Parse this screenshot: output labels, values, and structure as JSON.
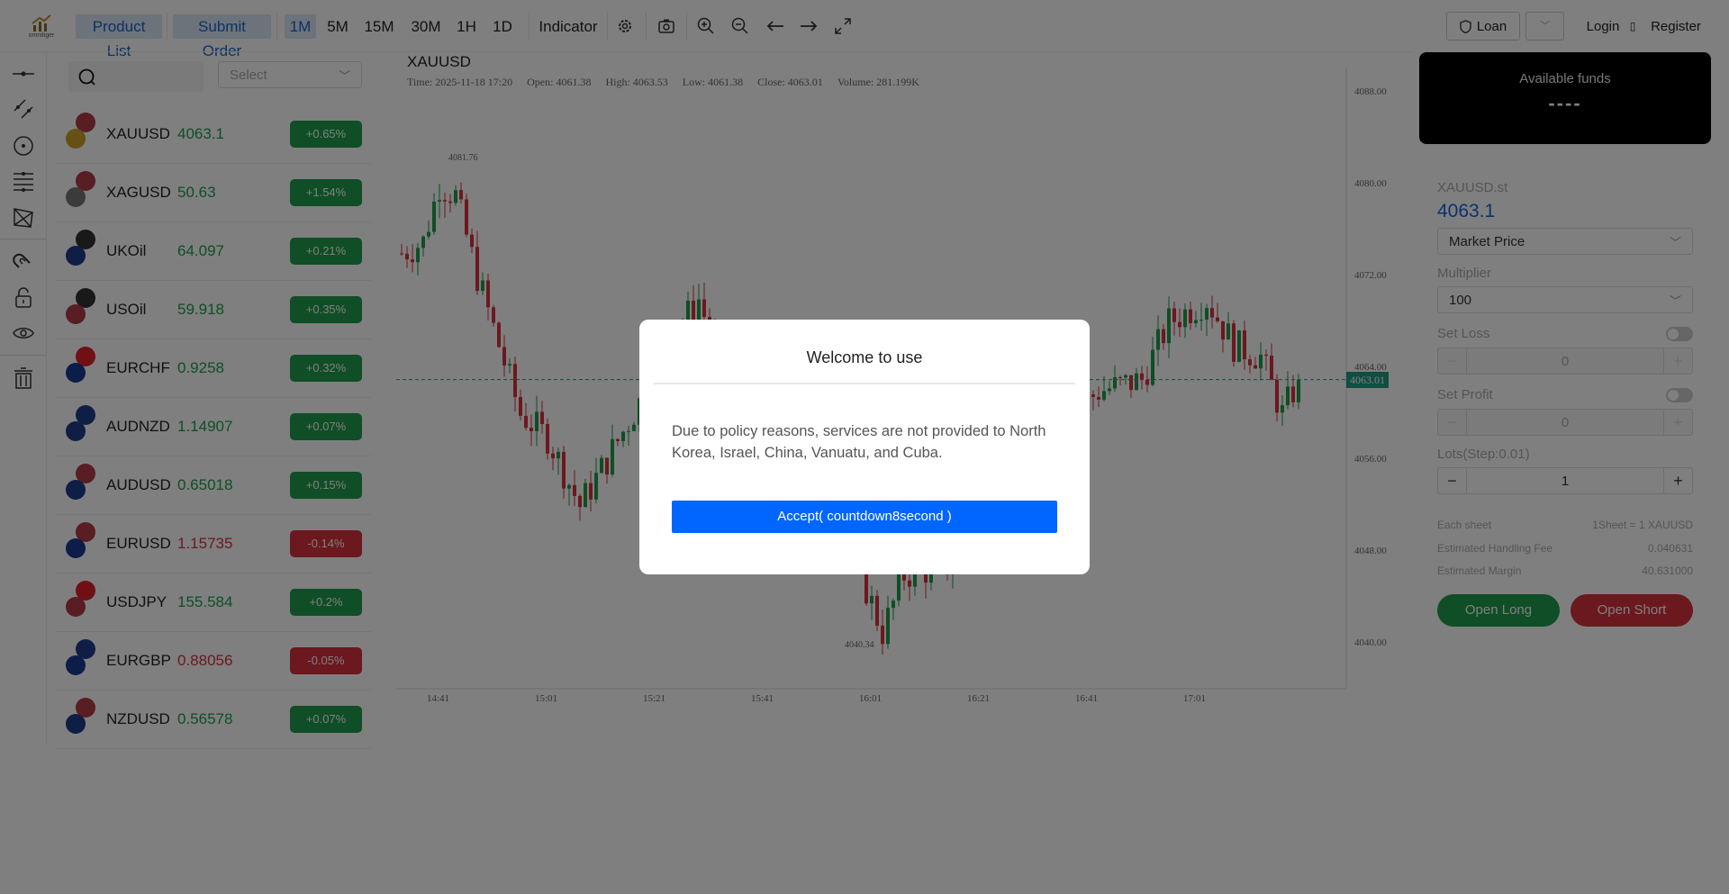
{
  "header": {
    "logo_text": "omnitiger",
    "nav": [
      {
        "label": "Product List",
        "active": true
      },
      {
        "label": "Submit Order",
        "active": true
      }
    ],
    "intervals": [
      {
        "label": "1M",
        "active": true
      },
      {
        "label": "5M"
      },
      {
        "label": "15M"
      },
      {
        "label": "30M"
      },
      {
        "label": "1H"
      },
      {
        "label": "1D"
      }
    ],
    "indicator_label": "Indicator",
    "loan_label": "Loan",
    "login_label": "Login",
    "separator": "▯",
    "register_label": "Register"
  },
  "products": {
    "search_placeholder": "",
    "select_placeholder": "Select",
    "items": [
      {
        "symbol": "XAUUSD",
        "price": "4063.1",
        "change": "+0.65%",
        "up": true,
        "flags": [
          "#b23a48",
          "#c9a227"
        ]
      },
      {
        "symbol": "XAGUSD",
        "price": "50.63",
        "change": "+1.54%",
        "up": true,
        "flags": [
          "#b23a48",
          "#777777"
        ]
      },
      {
        "symbol": "UKOil",
        "price": "64.097",
        "change": "+0.21%",
        "up": true,
        "flags": [
          "#333333",
          "#1f3d8a"
        ]
      },
      {
        "symbol": "USOil",
        "price": "59.918",
        "change": "+0.35%",
        "up": true,
        "flags": [
          "#333333",
          "#b23a48"
        ]
      },
      {
        "symbol": "EURCHF",
        "price": "0.9258",
        "change": "+0.32%",
        "up": true,
        "flags": [
          "#e0202b",
          "#1a3a93"
        ]
      },
      {
        "symbol": "AUDNZD",
        "price": "1.14907",
        "change": "+0.07%",
        "up": true,
        "flags": [
          "#1f3d8a",
          "#1f3d8a"
        ]
      },
      {
        "symbol": "AUDUSD",
        "price": "0.65018",
        "change": "+0.15%",
        "up": true,
        "flags": [
          "#b23a48",
          "#1f3d8a"
        ]
      },
      {
        "symbol": "EURUSD",
        "price": "1.15735",
        "change": "-0.14%",
        "up": false,
        "flags": [
          "#b23a48",
          "#1a3a93"
        ]
      },
      {
        "symbol": "USDJPY",
        "price": "155.584",
        "change": "+0.2%",
        "up": true,
        "flags": [
          "#e0202b",
          "#b23a48"
        ]
      },
      {
        "symbol": "EURGBP",
        "price": "0.88056",
        "change": "-0.05%",
        "up": false,
        "flags": [
          "#1f3d8a",
          "#1a3a93"
        ]
      },
      {
        "symbol": "NZDUSD",
        "price": "0.56578",
        "change": "+0.07%",
        "up": true,
        "flags": [
          "#b23a48",
          "#1f3d8a"
        ]
      }
    ]
  },
  "chart": {
    "symbol": "XAUUSD",
    "info": {
      "time": "Time: 2025-11-18 17:20",
      "open": "Open: 4061.38",
      "high": "High: 4063.53",
      "low": "Low: 4061.38",
      "close": "Close: 4063.01",
      "volume": "Volume: 281.199K"
    },
    "price_ticks": [
      "4088.00",
      "4080.00",
      "4072.00",
      "4064.00",
      "4056.00",
      "4048.00",
      "4040.00"
    ],
    "time_ticks": [
      "14:41",
      "15:01",
      "15:21",
      "15:41",
      "16:01",
      "16:21",
      "16:41",
      "17:01"
    ],
    "high_label": "4081.76",
    "low_label": "4040.34",
    "last_price": "4063.01",
    "colors": {
      "up": "#1f9d4c",
      "down": "#d9303f"
    }
  },
  "chart_data": {
    "type": "candlestick",
    "ylim": [
      4036,
      4090
    ],
    "high": 4081.76,
    "low": 4040.34,
    "last": 4063.01
  },
  "trade": {
    "funds_label": "Available funds",
    "funds_value": "----",
    "symbol": "XAUUSD.st",
    "price": "4063.1",
    "order_type": "Market Price",
    "multiplier_label": "Multiplier",
    "multiplier": "100",
    "set_loss_label": "Set Loss",
    "set_loss_value": "0",
    "set_profit_label": "Set Profit",
    "set_profit_value": "0",
    "lots_label": "Lots(Step:0.01)",
    "lots_value": "1",
    "each_sheet_label": "Each sheet",
    "each_sheet_value": "1Sheet = 1 XAUUSD",
    "fee_label": "Estimated Handling Fee",
    "fee_value": "0.040631",
    "margin_label": "Estimated Margin",
    "margin_value": "40.631000",
    "open_long": "Open Long",
    "open_short": "Open Short",
    "minus": "−",
    "plus": "+"
  },
  "modal": {
    "title": "Welcome to use",
    "body": "Due to policy reasons, services are not provided to North Korea, Israel, China, Vanuatu, and Cuba.",
    "accept": "Accept( countdown8second )"
  }
}
